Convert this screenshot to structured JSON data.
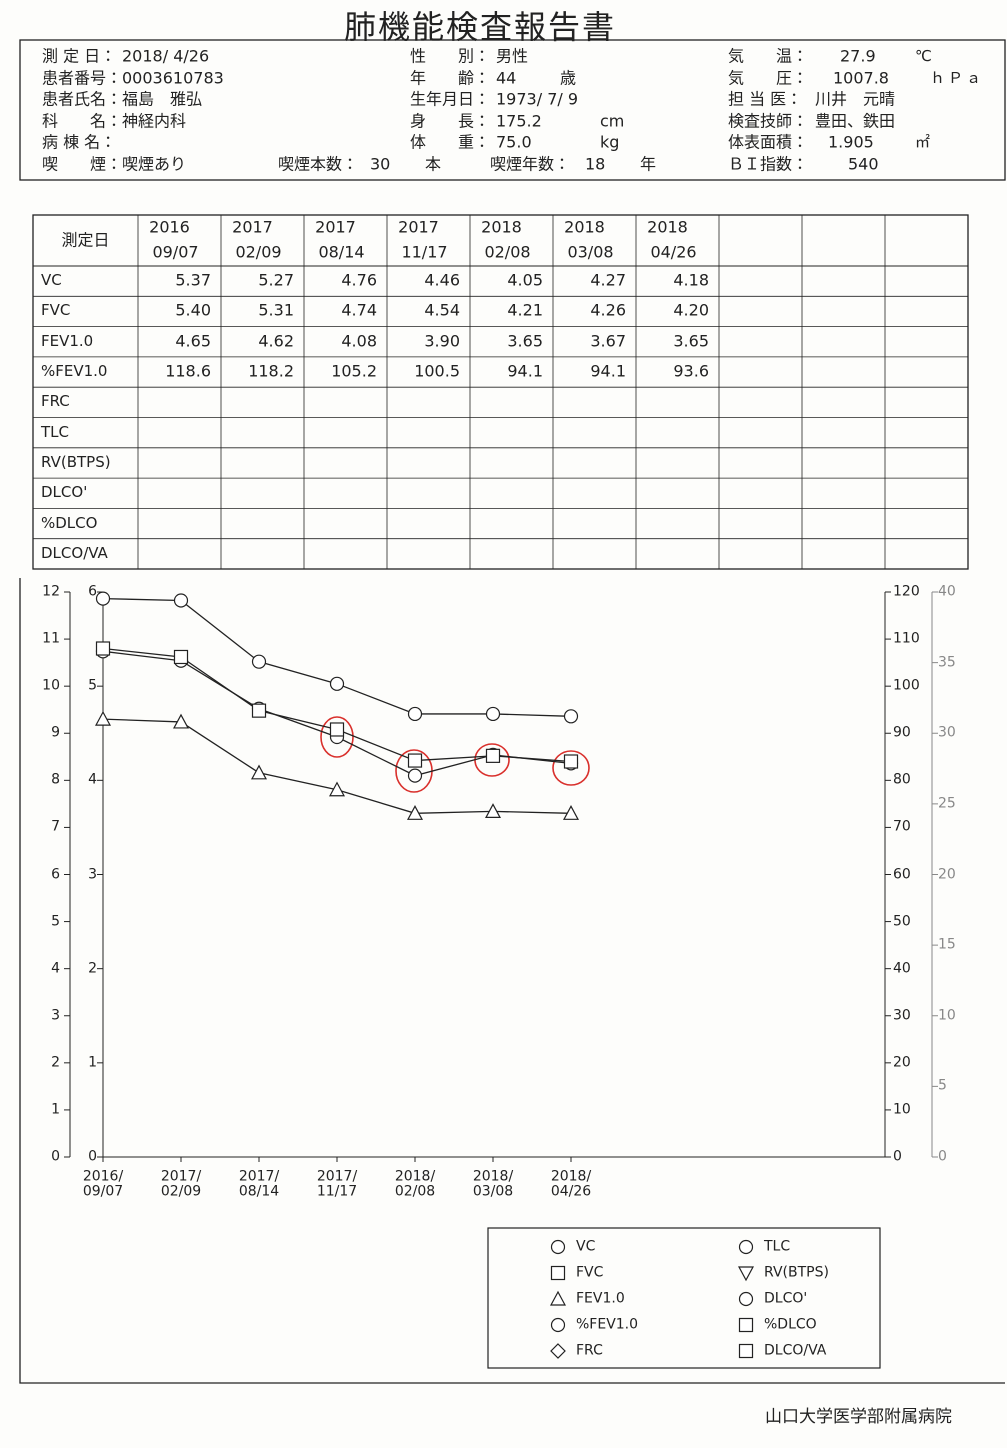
{
  "title": "肺機能検査報告書",
  "header": {
    "left": [
      {
        "label": "測 定 日：",
        "value": "2018/ 4/26"
      },
      {
        "label": "患者番号：",
        "value": "0003610783"
      },
      {
        "label": "患者氏名：",
        "value": "福島　雅弘"
      },
      {
        "label": "科　　名：",
        "value": "神経内科"
      },
      {
        "label": "病 棟 名："
      },
      {
        "label": "喫　　煙：",
        "value": "喫煙あり"
      }
    ],
    "middle": [
      {
        "label": "性　　別：",
        "value": "男性"
      },
      {
        "label": "年　　齢：",
        "value": "44",
        "unit": "歳"
      },
      {
        "label": "生年月日：",
        "value": "1973/ 7/ 9"
      },
      {
        "label": "身　　長：",
        "value": "175.2",
        "unit": "cm"
      },
      {
        "label": "体　　重：",
        "value": "75.0",
        "unit": "kg"
      }
    ],
    "smoking": [
      {
        "label": "喫煙本数：",
        "value": "30",
        "unit": "本"
      },
      {
        "label": "喫煙年数：",
        "value": "18",
        "unit": "年"
      }
    ],
    "right": [
      {
        "label": "気　　温：",
        "value": "27.9",
        "unit": "℃"
      },
      {
        "label": "気　　圧：",
        "value": "1007.8",
        "unit": "ｈＰａ"
      },
      {
        "label": "担 当 医：",
        "value": "川井　元晴"
      },
      {
        "label": "検査技師：",
        "value": "豊田、鉄田"
      },
      {
        "label": "体表面積：",
        "value": "1.905",
        "unit": "㎡"
      },
      {
        "label": "ＢＩ指数：",
        "value": "540"
      }
    ]
  },
  "table": {
    "header": "測定日",
    "dates": [
      {
        "year": "2016",
        "day": "09/07"
      },
      {
        "year": "2017",
        "day": "02/09"
      },
      {
        "year": "2017",
        "day": "08/14"
      },
      {
        "year": "2017",
        "day": "11/17"
      },
      {
        "year": "2018",
        "day": "02/08"
      },
      {
        "year": "2018",
        "day": "03/08"
      },
      {
        "year": "2018",
        "day": "04/26"
      }
    ],
    "rows": [
      {
        "label": "VC",
        "values": [
          "5.37",
          "5.27",
          "4.76",
          "4.46",
          "4.05",
          "4.27",
          "4.18"
        ]
      },
      {
        "label": "FVC",
        "values": [
          "5.40",
          "5.31",
          "4.74",
          "4.54",
          "4.21",
          "4.26",
          "4.20"
        ]
      },
      {
        "label": "FEV1.0",
        "values": [
          "4.65",
          "4.62",
          "4.08",
          "3.90",
          "3.65",
          "3.67",
          "3.65"
        ]
      },
      {
        "label": "%FEV1.0",
        "values": [
          "118.6",
          "118.2",
          "105.2",
          "100.5",
          "94.1",
          "94.1",
          "93.6"
        ]
      },
      {
        "label": "FRC",
        "values": []
      },
      {
        "label": "TLC",
        "values": []
      },
      {
        "label": "RV(BTPS)",
        "values": []
      },
      {
        "label": "DLCO'",
        "values": []
      },
      {
        "label": "%DLCO",
        "values": []
      },
      {
        "label": "DLCO/VA",
        "values": []
      }
    ]
  },
  "chart_data": {
    "type": "line",
    "categories": [
      "2016/\n09/07",
      "2017/\n02/09",
      "2017/\n08/14",
      "2017/\n11/17",
      "2018/\n02/08",
      "2018/\n03/08",
      "2018/\n04/26"
    ],
    "ylim": [
      0,
      12
    ],
    "yticks": [
      0,
      1,
      2,
      3,
      4,
      5,
      6,
      7,
      8,
      9,
      10,
      11,
      12
    ],
    "y2lim": [
      0,
      6
    ],
    "y2ticks": [
      0,
      1,
      2,
      3,
      4,
      5,
      6
    ],
    "y3lim": [
      0,
      120
    ],
    "y3ticks": [
      0,
      10,
      20,
      30,
      40,
      50,
      60,
      70,
      80,
      90,
      100,
      110,
      120
    ],
    "y4lim": [
      0,
      40
    ],
    "y4ticks": [
      0,
      5,
      10,
      15,
      20,
      25,
      30,
      35,
      40
    ],
    "color": "#222222",
    "series": [
      {
        "name": "VC",
        "marker": "circle",
        "axis": "y2",
        "values": [
          5.37,
          5.27,
          4.76,
          4.46,
          4.05,
          4.27,
          4.18
        ]
      },
      {
        "name": "FVC",
        "marker": "square",
        "axis": "y2",
        "values": [
          5.4,
          5.31,
          4.74,
          4.54,
          4.21,
          4.26,
          4.2
        ]
      },
      {
        "name": "FEV1.0",
        "marker": "triangle",
        "axis": "y2",
        "values": [
          4.65,
          4.62,
          4.08,
          3.9,
          3.65,
          3.67,
          3.65
        ]
      },
      {
        "name": "%FEV1.0",
        "marker": "circle",
        "axis": "y3",
        "values": [
          118.6,
          118.2,
          105.2,
          100.5,
          94.1,
          94.1,
          93.6
        ]
      },
      {
        "name": "FRC",
        "marker": "diamond",
        "axis": "y2",
        "values": [
          null,
          null,
          null,
          null,
          null,
          null,
          null
        ]
      },
      {
        "name": "TLC",
        "marker": "circle",
        "axis": "y2",
        "values": [
          null,
          null,
          null,
          null,
          null,
          null,
          null
        ]
      },
      {
        "name": "RV(BTPS)",
        "marker": "triangle-down",
        "axis": "y2",
        "values": [
          null,
          null,
          null,
          null,
          null,
          null,
          null
        ]
      },
      {
        "name": "DLCO'",
        "marker": "circle",
        "axis": "y2",
        "values": [
          null,
          null,
          null,
          null,
          null,
          null,
          null
        ]
      },
      {
        "name": "%DLCO",
        "marker": "square",
        "axis": "y3",
        "values": [
          null,
          null,
          null,
          null,
          null,
          null,
          null
        ]
      },
      {
        "name": "DLCO/VA",
        "marker": "square",
        "axis": "y2",
        "values": [
          null,
          null,
          null,
          null,
          null,
          null,
          null
        ]
      }
    ]
  },
  "footer": "山口大学医学部附属病院"
}
